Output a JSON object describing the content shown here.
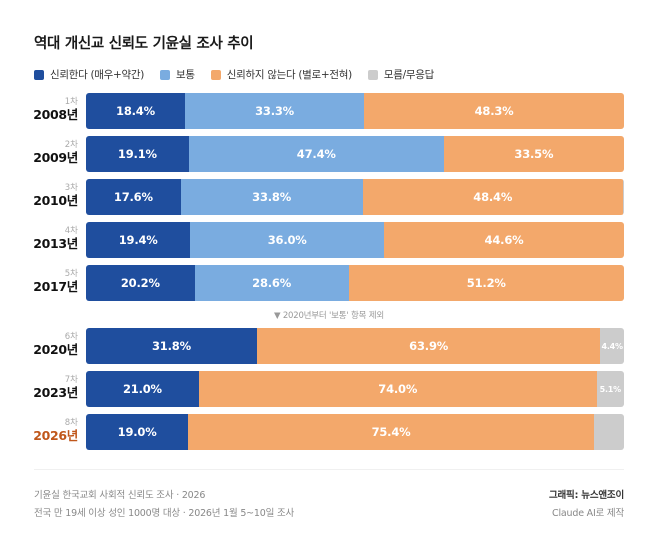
{
  "chart_data": {
    "type": "bar",
    "orientation": "horizontal-stacked-100",
    "title": "역대 개신교 신뢰도 기윤실 조사 추이",
    "legend_position": "top-left",
    "series_defs": [
      {
        "key": "trust",
        "name": "신뢰한다 (매우+약간)",
        "color": "#1f4e9e"
      },
      {
        "key": "neutral",
        "name": "보통",
        "color": "#7aace0"
      },
      {
        "key": "distrust",
        "name": "신뢰하지 않는다 (별로+전혀)",
        "color": "#f3a86b"
      },
      {
        "key": "unknown",
        "name": "모름/무응답",
        "color": "#cccccc"
      }
    ],
    "groups": [
      {
        "rows": [
          {
            "round": "1차",
            "year": "2008년",
            "highlight": false,
            "values": {
              "trust": 18.4,
              "neutral": 33.3,
              "distrust": 48.3,
              "unknown": 0
            },
            "labels": {
              "trust": "18.4%",
              "neutral": "33.3%",
              "distrust": "48.3%",
              "unknown": ""
            }
          },
          {
            "round": "2차",
            "year": "2009년",
            "highlight": false,
            "values": {
              "trust": 19.1,
              "neutral": 47.4,
              "distrust": 33.5,
              "unknown": 0
            },
            "labels": {
              "trust": "19.1%",
              "neutral": "47.4%",
              "distrust": "33.5%",
              "unknown": ""
            }
          },
          {
            "round": "3차",
            "year": "2010년",
            "highlight": false,
            "values": {
              "trust": 17.6,
              "neutral": 33.8,
              "distrust": 48.4,
              "unknown": 0.2
            },
            "labels": {
              "trust": "17.6%",
              "neutral": "33.8%",
              "distrust": "48.4%",
              "unknown": ""
            }
          },
          {
            "round": "4차",
            "year": "2013년",
            "highlight": false,
            "values": {
              "trust": 19.4,
              "neutral": 36.0,
              "distrust": 44.6,
              "unknown": 0
            },
            "labels": {
              "trust": "19.4%",
              "neutral": "36.0%",
              "distrust": "44.6%",
              "unknown": ""
            }
          },
          {
            "round": "5차",
            "year": "2017년",
            "highlight": false,
            "values": {
              "trust": 20.2,
              "neutral": 28.6,
              "distrust": 51.2,
              "unknown": 0
            },
            "labels": {
              "trust": "20.2%",
              "neutral": "28.6%",
              "distrust": "51.2%",
              "unknown": ""
            }
          }
        ]
      },
      {
        "rows": [
          {
            "round": "6차",
            "year": "2020년",
            "highlight": false,
            "values": {
              "trust": 31.8,
              "neutral": 0,
              "distrust": 63.9,
              "unknown": 4.4
            },
            "labels": {
              "trust": "31.8%",
              "neutral": "",
              "distrust": "63.9%",
              "unknown": "4.4%"
            }
          },
          {
            "round": "7차",
            "year": "2023년",
            "highlight": false,
            "values": {
              "trust": 21.0,
              "neutral": 0,
              "distrust": 74.0,
              "unknown": 5.1
            },
            "labels": {
              "trust": "21.0%",
              "neutral": "",
              "distrust": "74.0%",
              "unknown": "5.1%"
            }
          },
          {
            "round": "8차",
            "year": "2026년",
            "highlight": true,
            "values": {
              "trust": 19.0,
              "neutral": 0,
              "distrust": 75.4,
              "unknown": 5.6
            },
            "labels": {
              "trust": "19.0%",
              "neutral": "",
              "distrust": "75.4%",
              "unknown": ""
            }
          }
        ]
      }
    ],
    "annotation": "▼ 2020년부터 '보통' 항목 제외",
    "xlim": [
      0,
      100
    ]
  },
  "highlight_color": "#c0571b",
  "footer": {
    "source_line1": "기윤실 한국교회 사회적 신뢰도 조사 · 2026",
    "source_line2": "전국 만 19세 이상 성인 1000명 대상 · 2026년 1월 5~10일 조사",
    "credit": "그래픽: 뉴스앤조이",
    "made_by": "Claude AI로 제작"
  }
}
